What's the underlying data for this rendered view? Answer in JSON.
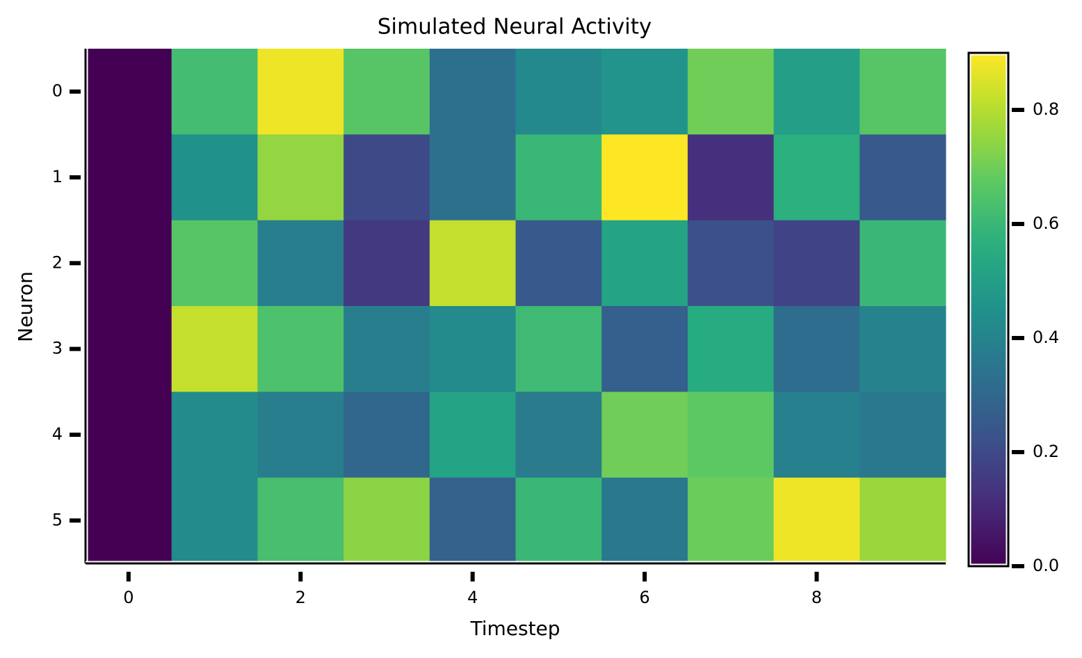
{
  "chart_data": {
    "type": "heatmap",
    "title": "Simulated Neural Activity",
    "x_label": "Timestep",
    "y_label": "Neuron",
    "xlim": [
      -0.5,
      9.5
    ],
    "ylim": [
      5.5,
      -0.5
    ],
    "xticks": [
      0,
      2,
      4,
      6,
      8
    ],
    "yticks": [
      0,
      1,
      2,
      3,
      4,
      5
    ],
    "z": [
      [
        0,
        0.62,
        0.88,
        0.66,
        0.33,
        0.42,
        0.46,
        0.7,
        0.5,
        0.66
      ],
      [
        0,
        0.45,
        0.75,
        0.2,
        0.33,
        0.6,
        0.9,
        0.12,
        0.57,
        0.25
      ],
      [
        0,
        0.66,
        0.38,
        0.15,
        0.82,
        0.25,
        0.52,
        0.22,
        0.18,
        0.6
      ],
      [
        0,
        0.82,
        0.64,
        0.38,
        0.43,
        0.61,
        0.27,
        0.55,
        0.32,
        0.4
      ],
      [
        0,
        0.43,
        0.38,
        0.3,
        0.52,
        0.37,
        0.7,
        0.67,
        0.39,
        0.36
      ],
      [
        0,
        0.43,
        0.63,
        0.74,
        0.28,
        0.6,
        0.36,
        0.69,
        0.88,
        0.76
      ]
    ],
    "colormap": "viridis",
    "clim": [
      0,
      0.9
    ],
    "colorbar_ticks": [
      {
        "value": 0,
        "label": "0.0"
      },
      0.2,
      0.4,
      0.6,
      0.8
    ]
  }
}
